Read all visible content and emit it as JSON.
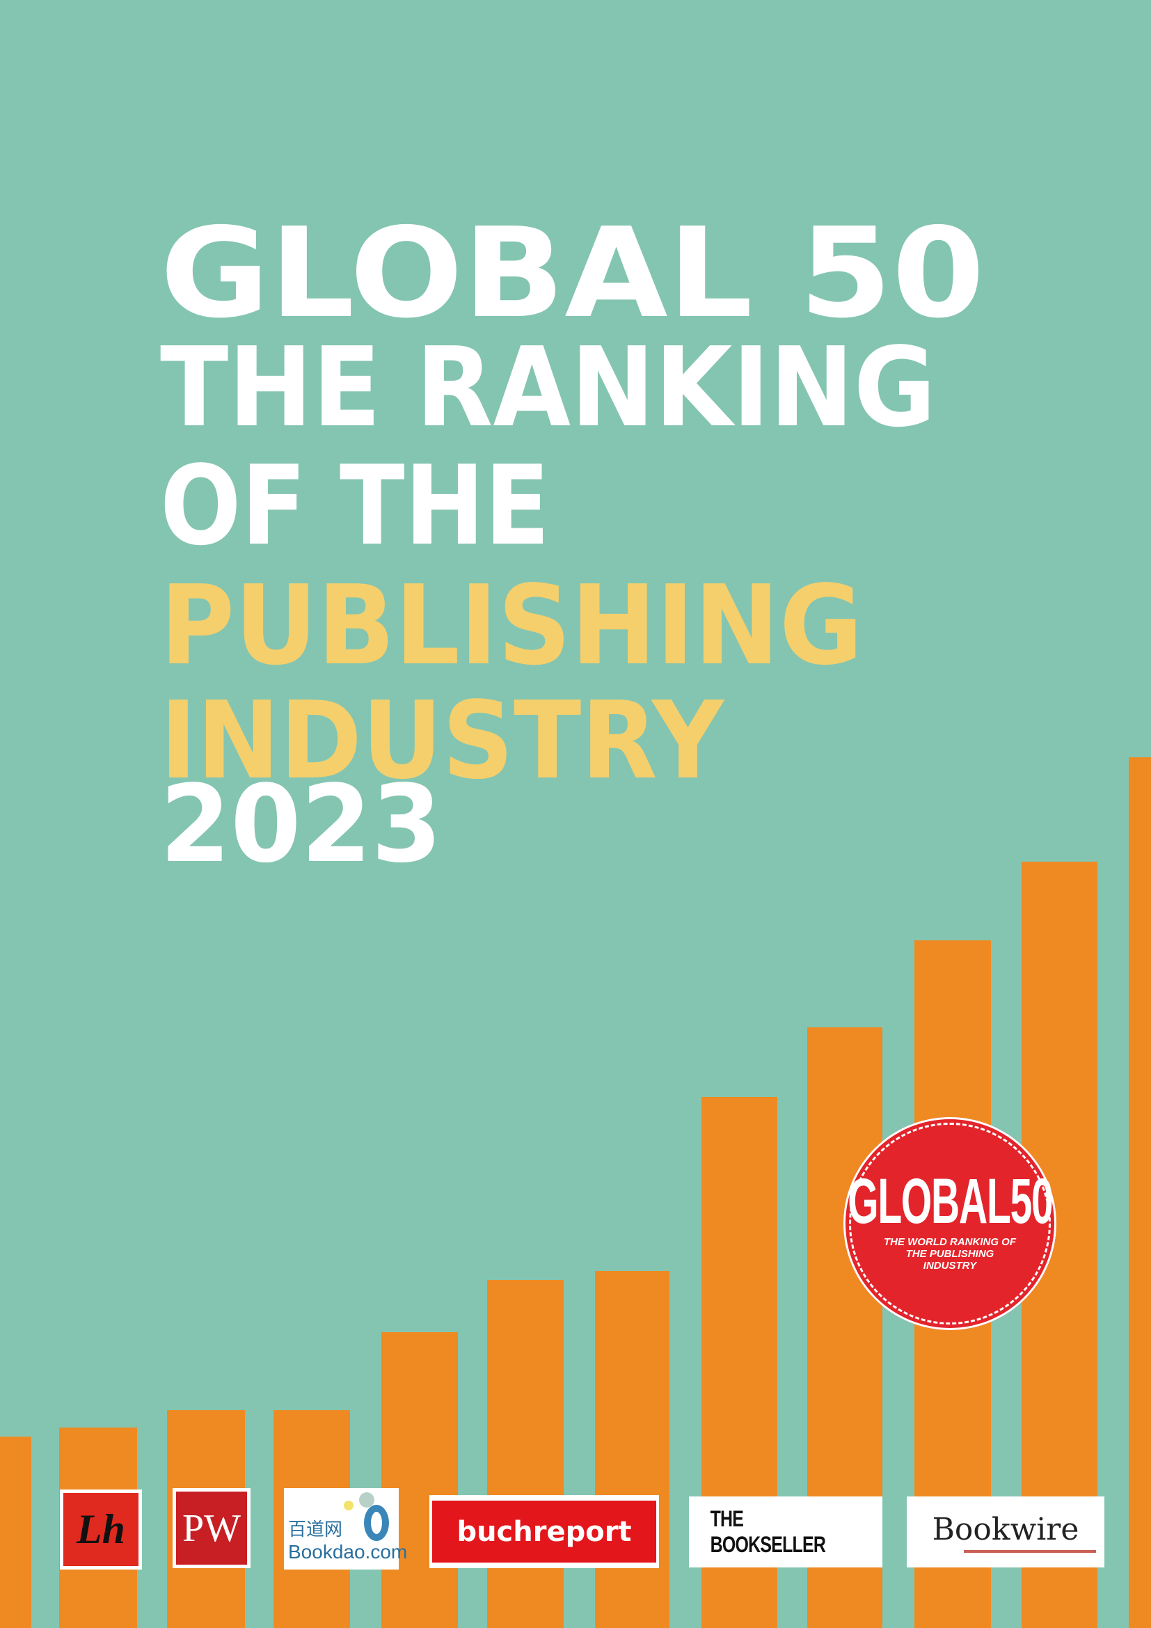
{
  "cover": {
    "title_lines": [
      "GLOBAL 50",
      "THE RANKING",
      "OF THE",
      "PUBLISHING",
      "INDUSTRY",
      "2023"
    ],
    "colors": {
      "background": "#84c5b1",
      "bars": "#ef8a23",
      "title_white": "#ffffff",
      "title_yellow": "#f5cf6c",
      "seal": "#e3242b"
    }
  },
  "seal": {
    "title": "GLOBAL50",
    "subtitle": "THE WORLD RANKING OF THE PUBLISHING INDUSTRY"
  },
  "decorative_bars": {
    "relative_heights": [
      0.22,
      0.23,
      0.25,
      0.25,
      0.34,
      0.4,
      0.41,
      0.61,
      0.69,
      0.79,
      0.88,
      1.0
    ]
  },
  "logos": {
    "livres_hebdo": "Lh",
    "publishers_weekly": "PW",
    "bookdao_cn": "百道网",
    "bookdao_en": "Bookdao.com",
    "buchreport": "buchreport",
    "bookseller": "THE BOOKSELLER",
    "bookwire": "Bookwire"
  }
}
